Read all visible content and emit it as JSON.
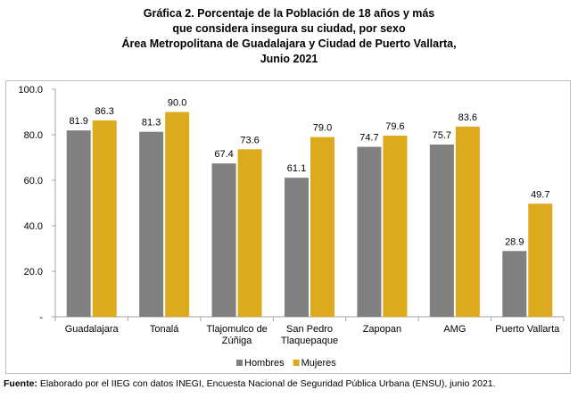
{
  "title_lines": [
    "Gráfica 2. Porcentaje de la Población de 18 años y más",
    "que considera insegura su ciudad, por sexo",
    "Área Metropolitana de Guadalajara y Ciudad de Puerto Vallarta,",
    "Junio 2021"
  ],
  "source": {
    "label": "Fuente:",
    "text": " Elaborado por el IIEG con datos INEGI, Encuesta Nacional de Seguridad Pública Urbana (ENSU), junio 2021."
  },
  "colors": {
    "Hombres": "#808080",
    "Mujeres": "#dcaa1c"
  },
  "chart_data": {
    "type": "bar",
    "categories": [
      [
        "Guadalajara"
      ],
      [
        "Tonalá"
      ],
      [
        "Tlajomulco de",
        "Zúñiga"
      ],
      [
        "San Pedro",
        "Tlaquepaque"
      ],
      [
        "Zapopan"
      ],
      [
        "AMG"
      ],
      [
        "Puerto Vallarta"
      ]
    ],
    "series": [
      {
        "name": "Hombres",
        "values": [
          81.9,
          81.3,
          67.4,
          61.1,
          74.7,
          75.7,
          28.9
        ],
        "labels": [
          "81.9",
          "81.3",
          "67.4",
          "61.1",
          "74.7",
          "75.7",
          "28.9"
        ]
      },
      {
        "name": "Mujeres",
        "values": [
          86.3,
          90.0,
          73.6,
          79.0,
          79.6,
          83.6,
          49.7
        ],
        "labels": [
          "86.3",
          "90.0",
          "73.6",
          "79.0",
          "79.6",
          "83.6",
          "49.7"
        ]
      }
    ],
    "ylim": [
      0,
      100
    ],
    "yticks": [
      0,
      20,
      40,
      60,
      80,
      100
    ],
    "ytick_labels": [
      "-",
      "20.0",
      "40.0",
      "60.0",
      "80.0",
      "100.0"
    ],
    "grid": false,
    "legend_position": "bottom"
  }
}
